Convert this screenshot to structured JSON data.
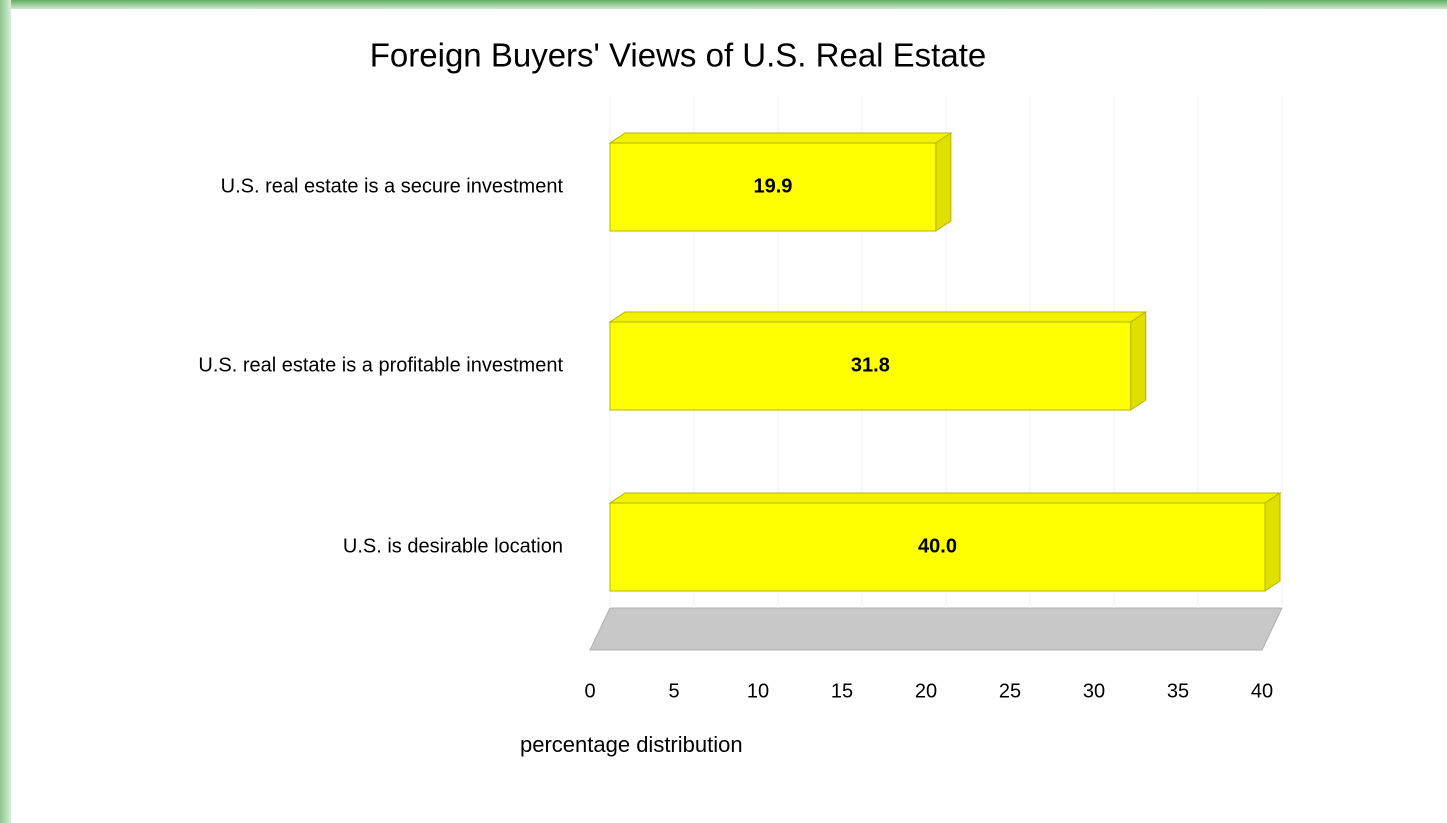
{
  "chart_data": {
    "type": "bar",
    "orientation": "horizontal",
    "title": "Foreign Buyers' Views of U.S. Real Estate",
    "x_label": "percentage distribution",
    "categories": [
      "U.S. real estate is a secure investment",
      "U.S. real estate is a profitable investment",
      "U.S. is desirable location"
    ],
    "values": [
      19.9,
      31.8,
      40.0
    ],
    "value_labels": [
      "19.9",
      "31.8",
      "40.0"
    ],
    "color": "#ffff00",
    "xlim": [
      0,
      40
    ],
    "xticks": [
      0,
      5,
      10,
      15,
      20,
      25,
      30,
      35,
      40
    ],
    "grid": true
  }
}
